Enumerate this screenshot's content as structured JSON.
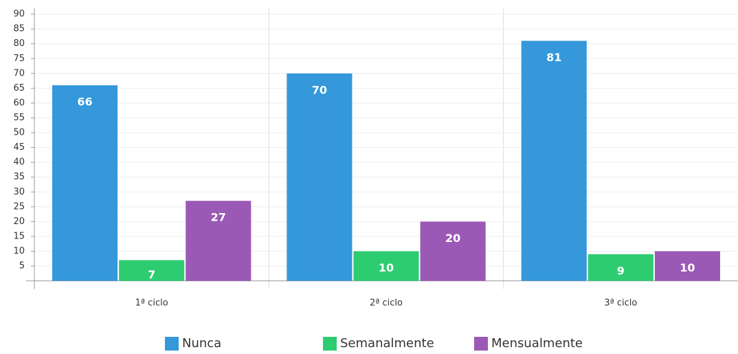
{
  "chart_data": {
    "type": "bar",
    "categories": [
      "1ª ciclo",
      "2ª ciclo",
      "3ª ciclo"
    ],
    "series": [
      {
        "name": "Nunca",
        "color": "#3498db",
        "values": [
          66,
          70,
          81
        ]
      },
      {
        "name": "Semanalmente",
        "color": "#2ecc71",
        "values": [
          7,
          10,
          9
        ]
      },
      {
        "name": "Mensualmente",
        "color": "#9b59b6",
        "values": [
          27,
          20,
          10
        ]
      }
    ],
    "ylim": [
      0,
      90
    ],
    "yticks": [
      5,
      10,
      15,
      20,
      25,
      30,
      35,
      40,
      45,
      50,
      55,
      60,
      65,
      70,
      75,
      80,
      85,
      90
    ],
    "grid": true,
    "legend": "bottom"
  }
}
